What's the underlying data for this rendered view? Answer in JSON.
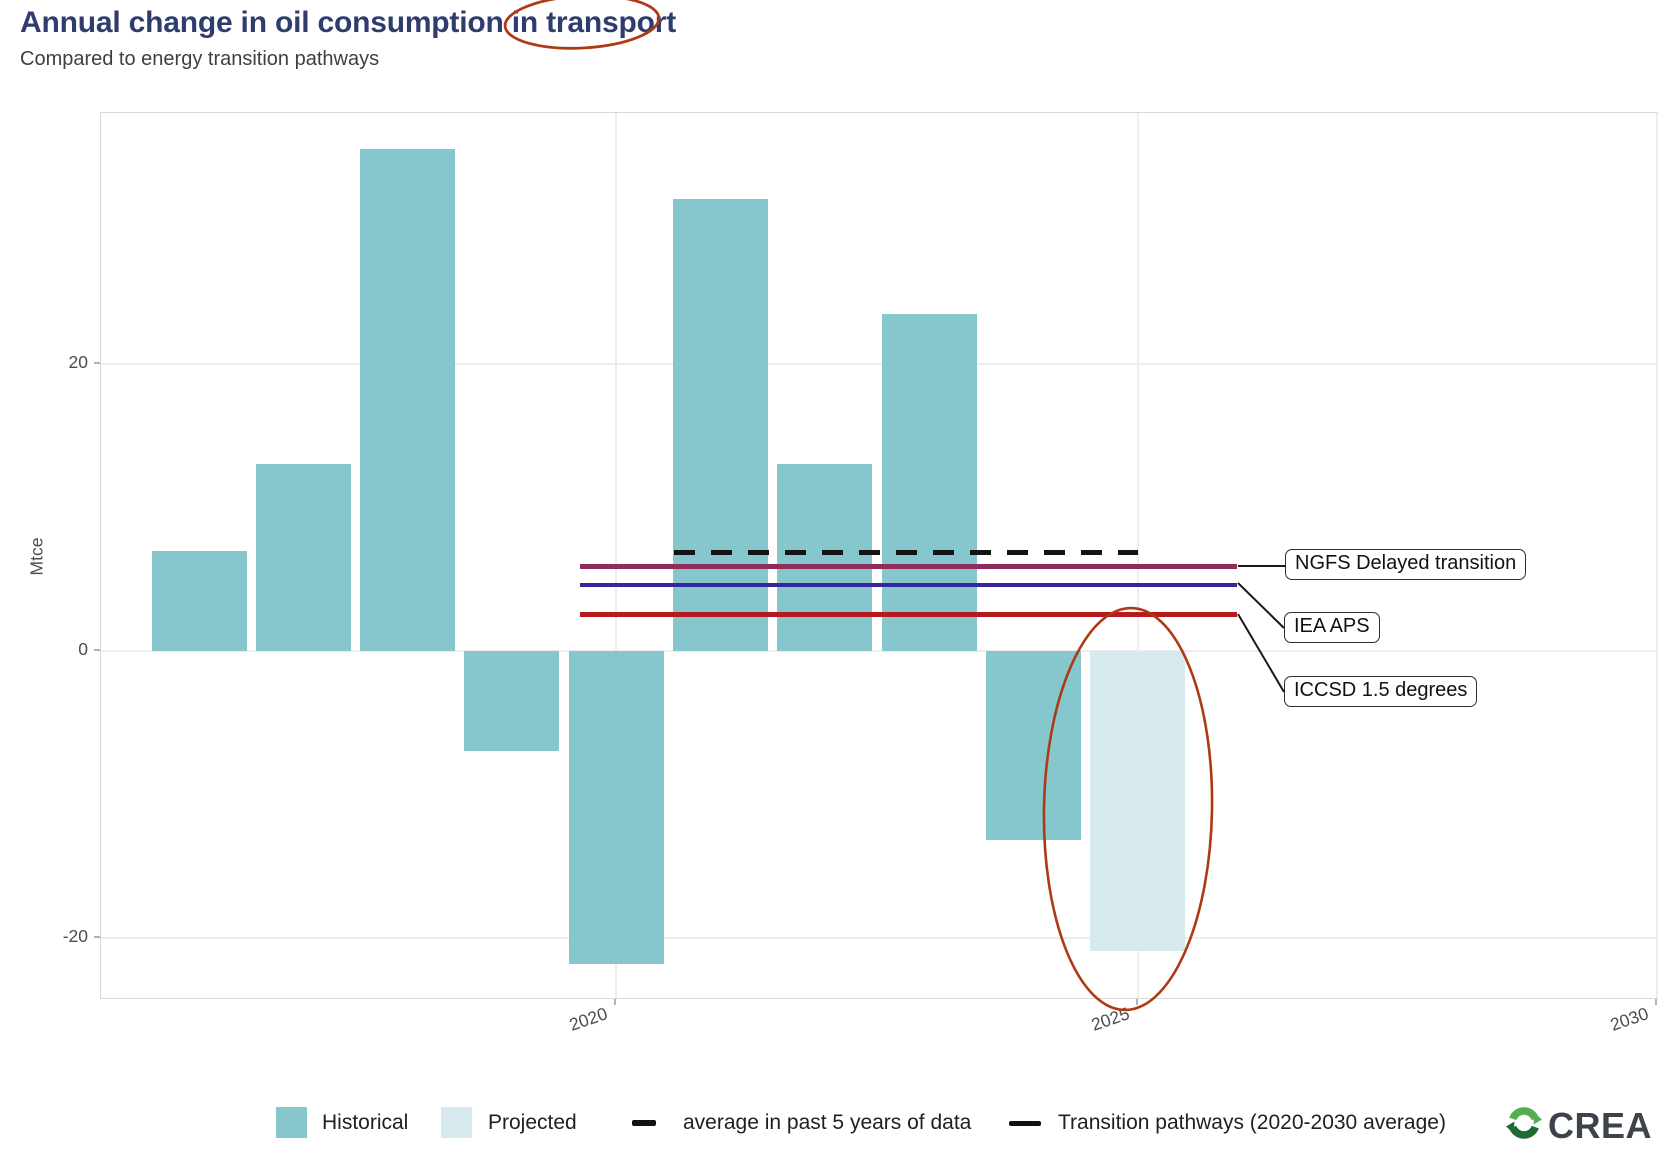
{
  "header": {
    "title": "Annual change in oil consumption in transport",
    "subtitle": "Compared to energy transition pathways"
  },
  "chart_data": {
    "type": "bar",
    "title": "Annual change in oil consumption in transport",
    "subtitle": "Compared to energy transition pathways",
    "ylabel": "Mtce",
    "xlabel": "",
    "ylim": [
      -24.3,
      37.5
    ],
    "xlim": [
      2015.5,
      2030
    ],
    "grid": true,
    "y_ticks": [
      20,
      0,
      -20
    ],
    "y_tick_labels": [
      "20",
      "0",
      "-20"
    ],
    "x_ticks": [
      2020,
      2025,
      2030
    ],
    "x_tick_labels": [
      "2020",
      "2025",
      "2030"
    ],
    "bars": [
      {
        "year": 2016,
        "value": 7,
        "series": "Historical"
      },
      {
        "year": 2017,
        "value": 13,
        "series": "Historical"
      },
      {
        "year": 2018,
        "value": 35,
        "series": "Historical"
      },
      {
        "year": 2019,
        "value": -7,
        "series": "Historical"
      },
      {
        "year": 2020,
        "value": -21.8,
        "series": "Historical"
      },
      {
        "year": 2021,
        "value": 31.5,
        "series": "Historical"
      },
      {
        "year": 2022,
        "value": 13,
        "series": "Historical"
      },
      {
        "year": 2023,
        "value": 23.5,
        "series": "Historical"
      },
      {
        "year": 2024,
        "value": -13.2,
        "series": "Historical"
      },
      {
        "year": 2025,
        "value": -20.9,
        "series": "Projected"
      }
    ],
    "reference_lines": [
      {
        "label": "average in past 5 years of data",
        "value": 6.9,
        "style": "dashed",
        "color": "#141414",
        "x_start_year": 2020.55,
        "x_end_year": 2025.0
      },
      {
        "label": "NGFS Delayed transition",
        "value": 5.9,
        "style": "solid",
        "color": "#8e2c5c",
        "x_start_year": 2019.65,
        "x_end_year": 2025.95
      },
      {
        "label": "IEA APS",
        "value": 4.6,
        "style": "solid",
        "color": "#38279b",
        "x_start_year": 2019.65,
        "x_end_year": 2025.95
      },
      {
        "label": "ICCSD 1.5 degrees",
        "value": 2.55,
        "style": "solid",
        "color": "#b41a1e",
        "x_start_year": 2019.65,
        "x_end_year": 2025.95
      }
    ],
    "legend_position": "bottom",
    "annotations": [
      {
        "type": "hand-drawn-ellipse",
        "target": "title word 'transport'"
      },
      {
        "type": "hand-drawn-ellipse",
        "target": "projected 2025 bar"
      }
    ]
  },
  "legend": {
    "items": [
      {
        "key": "historical",
        "label": "Historical"
      },
      {
        "key": "projected",
        "label": "Projected"
      },
      {
        "key": "average",
        "label": "average in past 5 years of data"
      },
      {
        "key": "pathways",
        "label": "Transition pathways (2020-2030 average)"
      }
    ]
  },
  "branding": {
    "logo_text": "CREA"
  },
  "colors": {
    "historical_bar": "#85c7cd",
    "projected_bar": "#d6e9ec",
    "ngfs_line": "#8e2c5c",
    "iea_line": "#38279b",
    "iccsd_line": "#b41a1e",
    "average_line": "#141414",
    "annotation_red": "#ad3a14",
    "title_navy": "#2e3d6e",
    "logo_green_light": "#52ae4f",
    "logo_green_dark": "#1e6b33"
  }
}
